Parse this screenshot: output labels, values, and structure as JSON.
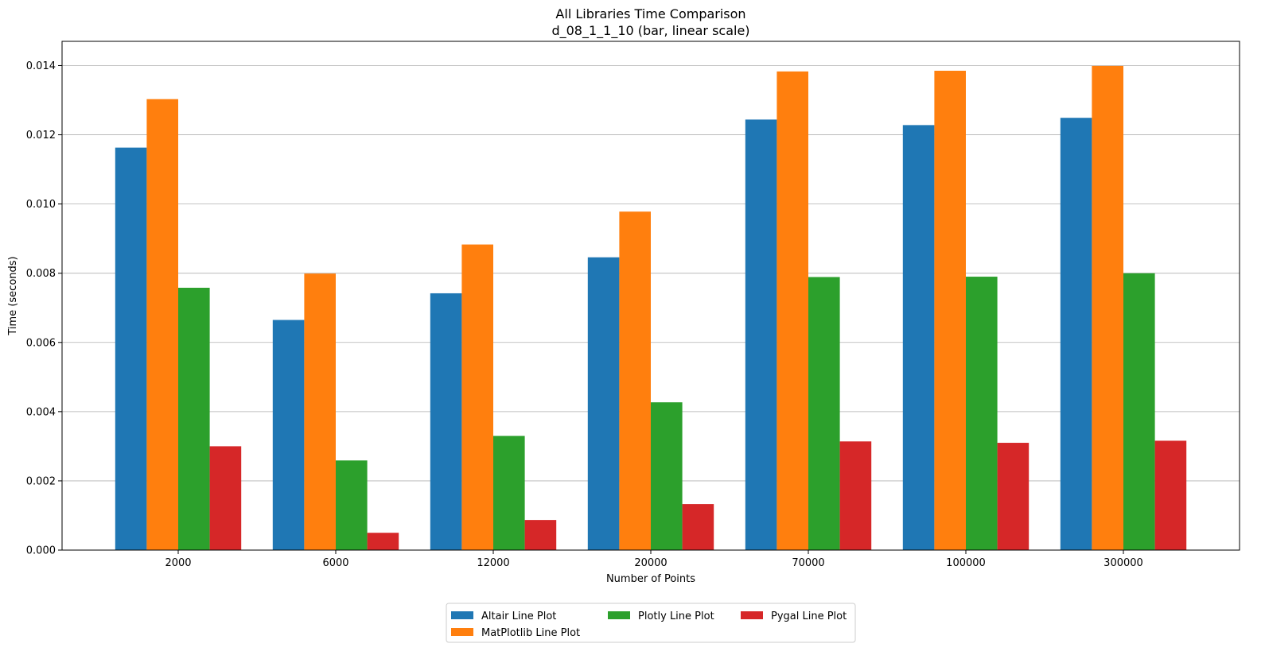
{
  "chart_data": {
    "type": "bar",
    "title": "All Libraries Time Comparison",
    "subtitle": "d_08_1_1_10 (bar, linear scale)",
    "xlabel": "Number of Points",
    "ylabel": "Time (seconds)",
    "categories": [
      "2000",
      "6000",
      "12000",
      "20000",
      "70000",
      "100000",
      "300000"
    ],
    "ylim": [
      0,
      0.0147
    ],
    "yticks": [
      "0.000",
      "0.002",
      "0.004",
      "0.006",
      "0.008",
      "0.010",
      "0.012",
      "0.014"
    ],
    "grid": "y-major",
    "legend_position": "bottom-center",
    "series": [
      {
        "name": "Altair Line Plot",
        "color": "#1f77b4",
        "values": [
          0.01163,
          0.00665,
          0.00742,
          0.00846,
          0.01244,
          0.01228,
          0.01249
        ]
      },
      {
        "name": "MatPlotlib Line Plot",
        "color": "#ff7f0e",
        "values": [
          0.01303,
          0.00799,
          0.00883,
          0.00978,
          0.01383,
          0.01385,
          0.01399
        ]
      },
      {
        "name": "Plotly Line Plot",
        "color": "#2ca02c",
        "values": [
          0.00758,
          0.00259,
          0.0033,
          0.00427,
          0.00789,
          0.0079,
          0.008
        ]
      },
      {
        "name": "Pygal Line Plot",
        "color": "#d62728",
        "values": [
          0.003,
          0.0005,
          0.00087,
          0.00133,
          0.00314,
          0.0031,
          0.00316
        ]
      }
    ]
  }
}
